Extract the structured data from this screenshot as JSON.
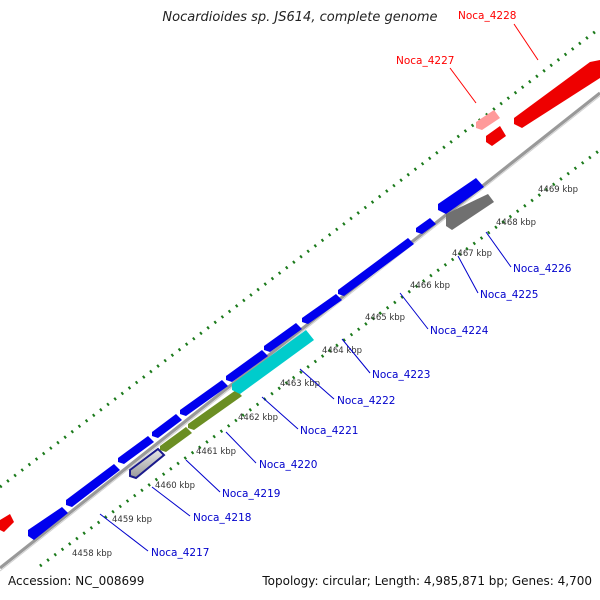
{
  "map": {
    "title": "Nocardioides sp. JS614, complete genome",
    "accession": "Accession: NC_008699",
    "stats": "Topology: circular; Length: 4,985,871 bp; Genes: 4,700"
  },
  "colors": {
    "backbone": "#999999",
    "gene_cds": "#0000ee",
    "gene_label": "#0000cc",
    "highlight": "#ff0000",
    "highlight_light": "#ff8a8a",
    "tick_dots": "#1b7a1b"
  },
  "ticks": [
    {
      "kb": 4458,
      "label": "4458 kbp"
    },
    {
      "kb": 4459,
      "label": "4459 kbp"
    },
    {
      "kb": 4460,
      "label": "4460 kbp"
    },
    {
      "kb": 4461,
      "label": "4461 kbp"
    },
    {
      "kb": 4462,
      "label": "4462 kbp"
    },
    {
      "kb": 4463,
      "label": "4463 kbp"
    },
    {
      "kb": 4464,
      "label": "4464 kbp"
    },
    {
      "kb": 4465,
      "label": "4465 kbp"
    },
    {
      "kb": 4466,
      "label": "4466 kbp"
    },
    {
      "kb": 4467,
      "label": "4467 kbp"
    },
    {
      "kb": 4468,
      "label": "4468 kbp"
    },
    {
      "kb": 4469,
      "label": "4469 kbp"
    }
  ],
  "genes": [
    {
      "name": "Noca_4217",
      "color": "#0000ee"
    },
    {
      "name": "Noca_4218",
      "color": "#1a1a8c"
    },
    {
      "name": "Noca_4219",
      "color": "#6b8e23"
    },
    {
      "name": "Noca_4220",
      "color": "#6b8e23"
    },
    {
      "name": "Noca_4221",
      "color": "#00cccc"
    },
    {
      "name": "Noca_4222",
      "color": "#0000ee"
    },
    {
      "name": "Noca_4223",
      "color": "#0000ee"
    },
    {
      "name": "Noca_4224",
      "color": "#0000ee"
    },
    {
      "name": "Noca_4225",
      "color": "#0000ee"
    },
    {
      "name": "Noca_4226",
      "color": "#707070"
    },
    {
      "name": "Noca_4227",
      "color": "#ff8a8a"
    },
    {
      "name": "Noca_4228",
      "color": "#ff0000"
    }
  ]
}
